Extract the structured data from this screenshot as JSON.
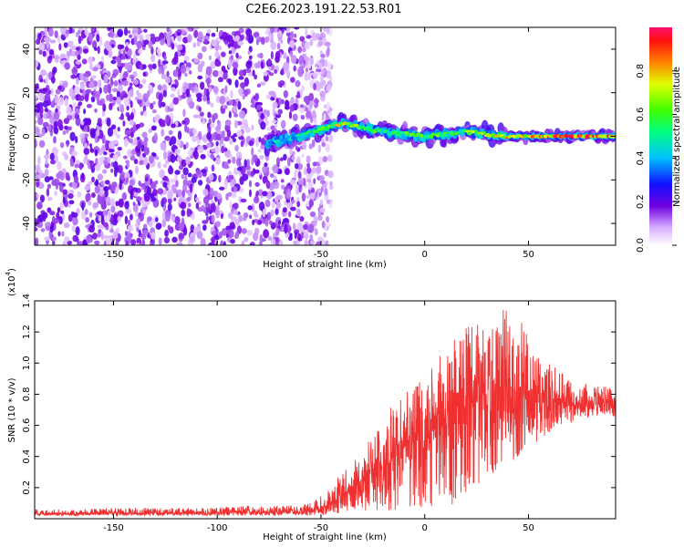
{
  "title": "C2E6.2023.191.22.53.R01",
  "colors": {
    "line": "#f03030",
    "dots": "#6a1fd8",
    "axis": "#000000"
  },
  "chart_data": [
    {
      "type": "heatmap",
      "xlabel": "Height of straight line (km)",
      "ylabel": "Frequency (Hz)",
      "xlim": [
        -188,
        92
      ],
      "ylim": [
        -50,
        50
      ],
      "x_ticks": [
        -150,
        -100,
        -50,
        0,
        50
      ],
      "x_tick_labels": [
        "-150",
        "-100",
        "-50",
        "0",
        "50"
      ],
      "y_ticks": [
        -40,
        -20,
        0,
        20,
        40
      ],
      "y_tick_labels": [
        "-40",
        "-20",
        "0",
        "20",
        "40"
      ],
      "colorbar": {
        "label": "Normalized spectral amplitude",
        "range": [
          0,
          1
        ],
        "ticks": [
          0.0,
          0.2,
          0.4,
          0.6,
          0.8
        ],
        "tick_labels": [
          "0.0",
          "0.2",
          "0.4",
          "0.6",
          "0.8"
        ]
      },
      "noise_region_x": [
        -188,
        -55
      ],
      "signal_ridge": {
        "x": [
          -76,
          -70,
          -60,
          -50,
          -45,
          -40,
          -35,
          -30,
          -20,
          -10,
          0,
          10,
          20,
          30,
          40,
          50,
          60,
          70,
          80,
          92
        ],
        "y": [
          -3,
          -2,
          0,
          3,
          5,
          6,
          5,
          4,
          2,
          1,
          0,
          1,
          2,
          1,
          0,
          0,
          0,
          0,
          0,
          0
        ],
        "amplitude": [
          0.4,
          0.45,
          0.5,
          0.6,
          0.7,
          0.75,
          0.72,
          0.65,
          0.6,
          0.6,
          0.65,
          0.62,
          0.65,
          0.75,
          0.8,
          0.8,
          0.9,
          0.95,
          0.95,
          0.95
        ]
      }
    },
    {
      "type": "line",
      "xlabel": "Height of straight line (km)",
      "ylabel": "SNR (10 * v/v)",
      "y_multiplier_label": "(x10",
      "y_multiplier_exp": "4",
      "xlim": [
        -188,
        92
      ],
      "ylim": [
        0,
        1.4
      ],
      "x_ticks": [
        -150,
        -100,
        -50,
        0,
        50
      ],
      "x_tick_labels": [
        "-150",
        "-100",
        "-50",
        "0",
        "50"
      ],
      "y_ticks": [
        0.2,
        0.4,
        0.6,
        0.8,
        1.0,
        1.2,
        1.4
      ],
      "y_tick_labels": [
        "0.2",
        "0.4",
        "0.6",
        "0.8",
        "1.0",
        "1.2",
        "1.4"
      ],
      "series": [
        {
          "x": [
            -188,
            -170,
            -150,
            -130,
            -110,
            -90,
            -70,
            -60,
            -55,
            -50,
            -45,
            -40,
            -35,
            -30,
            -25,
            -20,
            -15,
            -10,
            -5,
            0,
            5,
            10,
            15,
            20,
            25,
            30,
            35,
            40,
            45,
            50,
            55,
            60,
            65,
            70,
            75,
            80,
            85,
            92
          ],
          "y": [
            0.03,
            0.03,
            0.035,
            0.035,
            0.035,
            0.04,
            0.04,
            0.045,
            0.05,
            0.07,
            0.1,
            0.14,
            0.2,
            0.25,
            0.3,
            0.35,
            0.4,
            0.45,
            0.5,
            0.5,
            0.55,
            0.6,
            0.65,
            0.7,
            0.75,
            0.8,
            0.82,
            0.85,
            0.85,
            0.82,
            0.8,
            0.75,
            0.75,
            0.74,
            0.74,
            0.74,
            0.74,
            0.75
          ],
          "y_max": [
            0.06,
            0.06,
            0.07,
            0.07,
            0.07,
            0.08,
            0.08,
            0.09,
            0.1,
            0.15,
            0.2,
            0.3,
            0.38,
            0.45,
            0.55,
            0.65,
            0.75,
            0.85,
            0.9,
            0.95,
            1.0,
            1.1,
            1.2,
            1.25,
            1.25,
            1.3,
            1.35,
            1.4,
            1.3,
            1.2,
            1.05,
            1.0,
            0.95,
            0.9,
            0.88,
            0.86,
            0.85,
            0.85
          ],
          "y_min": [
            0.02,
            0.02,
            0.02,
            0.02,
            0.02,
            0.02,
            0.02,
            0.02,
            0.02,
            0.02,
            0.03,
            0.03,
            0.05,
            0.05,
            0.05,
            0.05,
            0.05,
            0.05,
            0.05,
            0.05,
            0.05,
            0.05,
            0.1,
            0.15,
            0.2,
            0.25,
            0.3,
            0.35,
            0.4,
            0.45,
            0.5,
            0.55,
            0.6,
            0.62,
            0.64,
            0.65,
            0.65,
            0.66
          ]
        }
      ]
    }
  ]
}
